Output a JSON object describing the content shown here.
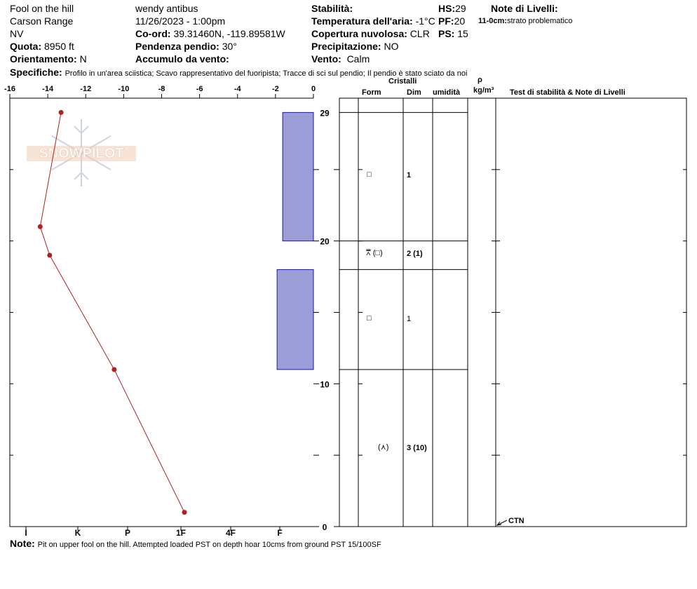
{
  "header": {
    "site": "Fool on the hill",
    "range": "Carson Range",
    "state": "NV",
    "elevation_label": "Quota:",
    "elevation": "8950 ft",
    "aspect_label": "Orientamento:",
    "aspect": "N",
    "observer": "wendy antibus",
    "datetime": "11/26/2023 - 1:00pm",
    "coord_label": "Co-ord:",
    "coord": "39.31460N, -119.89581W",
    "slope_label": "Pendenza pendio:",
    "slope": "30°",
    "wind_load_label": "Accumulo da vento:",
    "wind_load": "",
    "stability_label": "Stabilità:",
    "stability": "",
    "air_temp_label": "Temperatura dell'aria:",
    "air_temp": "-1°C",
    "sky_label": "Copertura nuvolosa:",
    "sky": "CLR",
    "precip_label": "Precipitazione:",
    "precip": "NO",
    "wind_label": "Vento:",
    "wind": "Calm",
    "hs_label": "HS:",
    "hs": "29",
    "pf_label": "PF:",
    "pf": "20",
    "ps_label": "PS:",
    "ps": "15",
    "layer_notes_label": "Note di Livelli:",
    "layer_note_depth": "11-0cm:",
    "layer_note_text": "strato problematico",
    "spec_label": "Specifiche:",
    "spec_text": "Profilo in un'area sciistica; Scavo rappresentativo del fuoripista; Tracce di sci sul pendio; Il pendio è stato sciato da noi"
  },
  "table_headers": {
    "cristalli": "Cristalli",
    "form": "Form",
    "dim": "Dim",
    "umidita": "umidità",
    "rho": "ρ",
    "density_unit": "kg/m³",
    "stability_notes": "Test di stabilità & Note di Livelli"
  },
  "layers": [
    {
      "form": "□",
      "dim": "1"
    },
    {
      "form": "⩞ (□)",
      "dim": "2 (1)"
    },
    {
      "form": "□",
      "dim": "1"
    },
    {
      "form": "(⋏)",
      "dim": "3 (10)"
    }
  ],
  "test_result": "CTN",
  "note_label": "Note:",
  "note_text": "Pit on upper fool on the hill.  Attempted loaded PST on depth hoar 10cms from ground PST 15/100SF",
  "watermark": "SNOWPILOT",
  "colors": {
    "hardness_fill": "#9c9cd6",
    "hardness_stroke": "#1a1a99",
    "temp_line": "#aa2222"
  },
  "chart_data": {
    "type": "snow_profile",
    "temperature_axis": {
      "ticks": [
        "-16",
        "-14",
        "-12",
        "-10",
        "-8",
        "-6",
        "-4",
        "-2",
        "0"
      ],
      "range": [
        -16,
        0
      ]
    },
    "hardness_axis": {
      "ticks": [
        "I",
        "K",
        "P",
        "1F",
        "4F",
        "F"
      ]
    },
    "height_axis": {
      "ticks": [
        "0",
        "10",
        "20",
        "29"
      ],
      "range": [
        0,
        30
      ]
    },
    "temperature_profile": [
      {
        "height": 29,
        "temp": -13.3
      },
      {
        "height": 21,
        "temp": -14.4
      },
      {
        "height": 19,
        "temp": -13.9
      },
      {
        "height": 11,
        "temp": -10.5
      },
      {
        "height": 1,
        "temp": -6.8
      }
    ],
    "hardness_layers": [
      {
        "top": 29,
        "bottom": 20,
        "hardness": "4F+"
      },
      {
        "top": 20,
        "bottom": 18,
        "hardness": "F"
      },
      {
        "top": 18,
        "bottom": 11,
        "hardness": "4F-"
      },
      {
        "top": 11,
        "bottom": 0,
        "hardness": "F"
      }
    ],
    "layer_boundaries": [
      29,
      20,
      18,
      11,
      0
    ],
    "layer_midpoints": [
      24.5,
      19,
      14.5,
      5.5
    ],
    "stability_test_height": 0
  }
}
